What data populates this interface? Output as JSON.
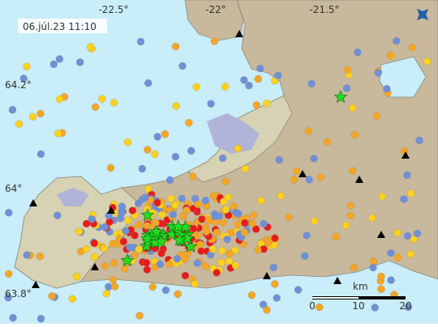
{
  "timestamp": "06.júl.23 11:10",
  "longitude_labels": [
    "-22.5°",
    "-22°",
    "-21.5°"
  ],
  "latitude_labels": [
    "64.2°",
    "64°",
    "63.8°"
  ],
  "scale_bar": {
    "unit": "km",
    "ticks": [
      0,
      10,
      20
    ]
  }
}
